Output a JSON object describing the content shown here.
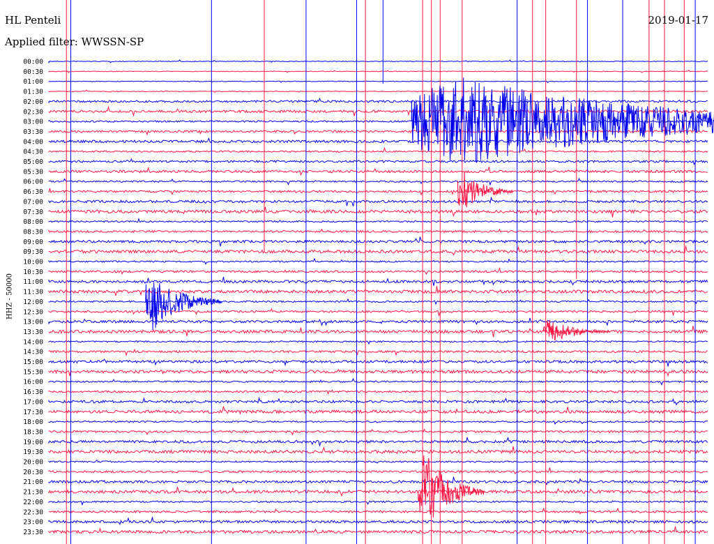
{
  "header": {
    "station": "HL Penteli",
    "filter": "Applied filter: WWSSN-SP",
    "date": "2019-01-17"
  },
  "chart_data": {
    "type": "line",
    "title": "HL Penteli",
    "subtitle": "Applied filter: WWSSN-SP",
    "ylabel": "HHZ - 50000",
    "xlabel": "",
    "rows": [
      "00:00",
      "00:30",
      "01:00",
      "01:30",
      "02:00",
      "02:30",
      "03:00",
      "03:30",
      "04:00",
      "04:30",
      "05:00",
      "05:30",
      "06:00",
      "06:30",
      "07:00",
      "07:30",
      "08:00",
      "08:30",
      "09:00",
      "09:30",
      "10:00",
      "10:30",
      "11:00",
      "11:30",
      "12:00",
      "12:30",
      "13:00",
      "13:30",
      "14:00",
      "14:30",
      "15:00",
      "15:30",
      "16:00",
      "16:30",
      "17:00",
      "17:30",
      "18:00",
      "18:30",
      "19:00",
      "19:30",
      "20:00",
      "20:30",
      "21:00",
      "21:30",
      "22:00",
      "22:30",
      "23:00",
      "23:30"
    ],
    "x_minutes_per_row": 30,
    "row_colors": [
      "#0000ee",
      "#ff1744"
    ],
    "events": [
      {
        "row": 6,
        "minute": 16.5,
        "amplitude": 24,
        "duration": 25
      },
      {
        "row": 24,
        "minute": 4.4,
        "amplitude": 16,
        "duration": 3.5
      },
      {
        "row": 27,
        "minute": 22.5,
        "amplitude": 7,
        "duration": 3
      },
      {
        "row": 13,
        "minute": 18.6,
        "amplitude": 12,
        "duration": 2.5
      },
      {
        "row": 43,
        "minute": 16.8,
        "amplitude": 22,
        "duration": 3
      }
    ],
    "grid": false
  }
}
